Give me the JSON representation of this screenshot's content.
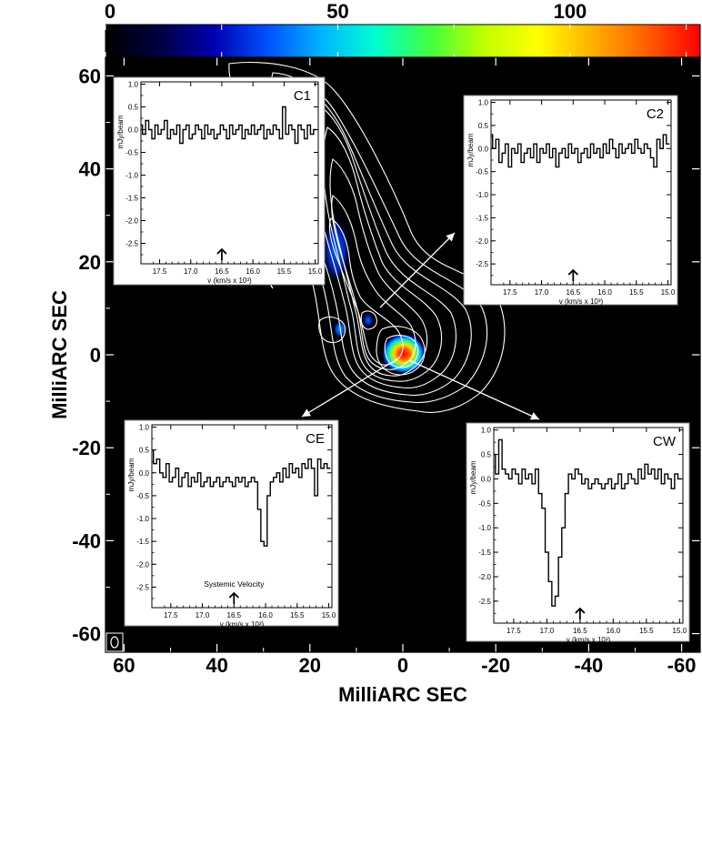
{
  "colorbar": {
    "ticks": [
      0,
      50,
      100
    ],
    "range": [
      0,
      128
    ],
    "colors": [
      "#000000",
      "#000040",
      "#0000b0",
      "#0050ff",
      "#00b4ff",
      "#00ffd0",
      "#40ff40",
      "#c0ff00",
      "#ffff00",
      "#ffb000",
      "#ff6000",
      "#ff0000"
    ]
  },
  "main_plot": {
    "xlabel": "MilliARC SEC",
    "ylabel": "MilliARC SEC",
    "xlim": [
      64,
      -64
    ],
    "ylim": [
      -64,
      64
    ],
    "xticks": [
      60,
      40,
      20,
      0,
      -20,
      -40,
      -60
    ],
    "yticks": [
      60,
      40,
      20,
      0,
      -20,
      -40,
      -60
    ],
    "background": "#000000",
    "contour_color": "#ffffff"
  },
  "chart_data": [
    {
      "type": "line",
      "title": "C1",
      "pointer_to": [
        15,
        5
      ],
      "xlabel": "v (km/s x 10³)",
      "ylabel": "mJy/beam",
      "xlim": [
        17.8,
        14.95
      ],
      "ylim": [
        -2.95,
        1.05
      ],
      "xticks": [
        "17.5",
        "17.0",
        "16.5",
        "16.0",
        "15.5",
        "15.0"
      ],
      "yticks": [
        "1.0",
        "0.5",
        "0.0",
        "-0.5",
        "-1.0",
        "-1.5",
        "-2.0",
        "-2.5"
      ],
      "arrow_velocity": 16.5,
      "annotation": "",
      "x": [
        17.8,
        17.75,
        17.7,
        17.65,
        17.6,
        17.55,
        17.5,
        17.45,
        17.4,
        17.35,
        17.3,
        17.25,
        17.2,
        17.15,
        17.1,
        17.05,
        17.0,
        16.95,
        16.9,
        16.85,
        16.8,
        16.75,
        16.7,
        16.65,
        16.6,
        16.55,
        16.5,
        16.45,
        16.4,
        16.35,
        16.3,
        16.25,
        16.2,
        16.15,
        16.1,
        16.05,
        16.0,
        15.95,
        15.9,
        15.85,
        15.8,
        15.75,
        15.7,
        15.65,
        15.6,
        15.55,
        15.5,
        15.45,
        15.4,
        15.35,
        15.3,
        15.25,
        15.2,
        15.15,
        15.1,
        15.05,
        15.0
      ],
      "values": [
        0.1,
        -0.1,
        0.2,
        0.0,
        -0.2,
        0.1,
        -0.1,
        0.0,
        0.2,
        -0.2,
        0.0,
        -0.1,
        0.1,
        -0.3,
        0.0,
        0.1,
        -0.2,
        -0.1,
        0.1,
        0.0,
        -0.2,
        0.1,
        -0.1,
        0.0,
        -0.2,
        -0.1,
        0.1,
        0.0,
        -0.2,
        0.1,
        -0.1,
        0.0,
        0.1,
        -0.2,
        0.0,
        -0.1,
        0.1,
        -0.1,
        0.0,
        0.1,
        -0.2,
        0.0,
        -0.1,
        0.1,
        0.0,
        -0.2,
        0.5,
        -0.1,
        0.1,
        0.0,
        -0.3,
        0.1,
        0.0,
        -0.2,
        0.1,
        -0.1,
        0.0
      ]
    },
    {
      "type": "line",
      "title": "C2",
      "pointer_to": [
        -12,
        27
      ],
      "xlabel": "v (km/s x 10³)",
      "ylabel": "mJy/beam",
      "xlim": [
        17.8,
        14.95
      ],
      "ylim": [
        -2.95,
        1.05
      ],
      "xticks": [
        "17.5",
        "17.0",
        "16.5",
        "16.0",
        "15.5",
        "15.0"
      ],
      "yticks": [
        "1.0",
        "0.5",
        "0.0",
        "-0.5",
        "-1.0",
        "-1.5",
        "-2.0",
        "-2.5"
      ],
      "arrow_velocity": 16.5,
      "annotation": "",
      "x": [
        17.8,
        17.75,
        17.7,
        17.65,
        17.6,
        17.55,
        17.5,
        17.45,
        17.4,
        17.35,
        17.3,
        17.25,
        17.2,
        17.15,
        17.1,
        17.05,
        17.0,
        16.95,
        16.9,
        16.85,
        16.8,
        16.75,
        16.7,
        16.65,
        16.6,
        16.55,
        16.5,
        16.45,
        16.4,
        16.35,
        16.3,
        16.25,
        16.2,
        16.15,
        16.1,
        16.05,
        16.0,
        15.95,
        15.9,
        15.85,
        15.8,
        15.75,
        15.7,
        15.65,
        15.6,
        15.55,
        15.5,
        15.45,
        15.4,
        15.35,
        15.3,
        15.25,
        15.2,
        15.15,
        15.1,
        15.05,
        15.0
      ],
      "values": [
        0.3,
        0.0,
        0.2,
        -0.3,
        -0.1,
        0.1,
        -0.4,
        0.0,
        -0.1,
        0.1,
        -0.3,
        -0.1,
        0.0,
        -0.2,
        0.1,
        -0.3,
        0.0,
        -0.1,
        0.1,
        -0.2,
        0.0,
        -0.4,
        -0.1,
        0.0,
        -0.2,
        0.1,
        -0.1,
        0.0,
        -0.3,
        -0.1,
        0.0,
        -0.2,
        0.1,
        -0.1,
        0.0,
        -0.2,
        0.1,
        -0.1,
        0.2,
        0.0,
        -0.2,
        0.1,
        -0.1,
        0.0,
        0.1,
        -0.1,
        0.2,
        0.0,
        -0.1,
        0.1,
        0.0,
        -0.2,
        -0.4,
        0.2,
        0.0,
        0.3,
        0.1
      ]
    },
    {
      "type": "line",
      "title": "CE",
      "pointer_to": [
        -2,
        -1
      ],
      "xlabel": "v (km/s x 10³)",
      "ylabel": "mJy/beam",
      "xlim": [
        17.8,
        14.95
      ],
      "ylim": [
        -2.95,
        1.05
      ],
      "xticks": [
        "17.5",
        "17.0",
        "16.5",
        "16.0",
        "15.5",
        "15.0"
      ],
      "yticks": [
        "1.0",
        "0.5",
        "0.0",
        "-0.5",
        "-1.0",
        "-1.5",
        "-2.0",
        "-2.5"
      ],
      "arrow_velocity": 16.5,
      "annotation": "Systemic Velocity",
      "x": [
        17.8,
        17.75,
        17.7,
        17.65,
        17.6,
        17.55,
        17.5,
        17.45,
        17.4,
        17.35,
        17.3,
        17.25,
        17.2,
        17.15,
        17.1,
        17.05,
        17.0,
        16.95,
        16.9,
        16.85,
        16.8,
        16.75,
        16.7,
        16.65,
        16.6,
        16.55,
        16.5,
        16.45,
        16.4,
        16.35,
        16.3,
        16.25,
        16.2,
        16.15,
        16.1,
        16.05,
        16.0,
        15.95,
        15.9,
        15.85,
        15.8,
        15.75,
        15.7,
        15.65,
        15.6,
        15.55,
        15.5,
        15.45,
        15.4,
        15.35,
        15.3,
        15.25,
        15.2,
        15.15,
        15.1,
        15.05,
        15.0
      ],
      "values": [
        0.5,
        0.2,
        0.3,
        0.0,
        -0.1,
        0.2,
        -0.2,
        -0.1,
        0.1,
        -0.3,
        -0.1,
        0.0,
        -0.3,
        -0.1,
        -0.2,
        0.0,
        -0.3,
        -0.2,
        -0.1,
        -0.3,
        -0.2,
        -0.1,
        -0.3,
        -0.2,
        -0.1,
        -0.2,
        -0.3,
        -0.1,
        -0.2,
        -0.1,
        -0.3,
        -0.2,
        -0.1,
        -0.2,
        -0.8,
        -1.5,
        -1.6,
        -0.5,
        -0.2,
        -0.1,
        0.0,
        -0.2,
        0.1,
        -0.1,
        0.2,
        0.0,
        0.1,
        -0.1,
        0.2,
        0.1,
        0.3,
        0.1,
        -0.5,
        0.3,
        0.1,
        0.2,
        0.1
      ]
    },
    {
      "type": "line",
      "title": "CW",
      "pointer_to": [
        -30,
        -14
      ],
      "xlabel": "v (km/s x 10³)",
      "ylabel": "mJy/beam",
      "xlim": [
        17.8,
        14.95
      ],
      "ylim": [
        -2.95,
        1.05
      ],
      "xticks": [
        "17.5",
        "17.0",
        "16.5",
        "16.0",
        "15.5",
        "15.0"
      ],
      "yticks": [
        "1.0",
        "0.5",
        "0.0",
        "-0.5",
        "-1.0",
        "-1.5",
        "-2.0",
        "-2.5"
      ],
      "arrow_velocity": 16.5,
      "annotation": "",
      "x": [
        17.8,
        17.75,
        17.7,
        17.65,
        17.6,
        17.55,
        17.5,
        17.45,
        17.4,
        17.35,
        17.3,
        17.25,
        17.2,
        17.15,
        17.1,
        17.05,
        17.0,
        16.95,
        16.9,
        16.85,
        16.8,
        16.75,
        16.7,
        16.65,
        16.6,
        16.55,
        16.5,
        16.45,
        16.4,
        16.35,
        16.3,
        16.25,
        16.2,
        16.15,
        16.1,
        16.05,
        16.0,
        15.95,
        15.9,
        15.85,
        15.8,
        15.75,
        15.7,
        15.65,
        15.6,
        15.55,
        15.5,
        15.45,
        15.4,
        15.35,
        15.3,
        15.25,
        15.2,
        15.15,
        15.1,
        15.05,
        15.0
      ],
      "values": [
        0.5,
        0.1,
        0.8,
        0.2,
        0.1,
        0.0,
        0.2,
        0.1,
        -0.1,
        0.2,
        0.0,
        0.1,
        -0.1,
        0.2,
        -0.3,
        -0.6,
        -1.5,
        -2.1,
        -2.6,
        -2.4,
        -1.6,
        -1.0,
        -0.3,
        0.1,
        0.0,
        0.2,
        0.1,
        -0.1,
        0.0,
        -0.2,
        -0.1,
        0.0,
        -0.1,
        -0.2,
        -0.1,
        0.0,
        -0.2,
        -0.1,
        0.1,
        -0.2,
        -0.1,
        0.1,
        0.0,
        -0.1,
        0.2,
        0.0,
        0.3,
        0.1,
        0.2,
        0.0,
        0.2,
        -0.1,
        0.1,
        0.0,
        -0.2,
        0.1,
        0.0
      ]
    }
  ]
}
